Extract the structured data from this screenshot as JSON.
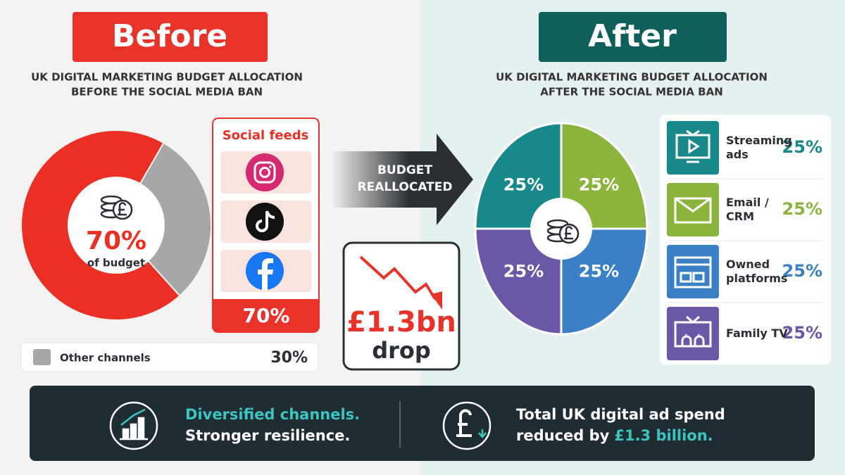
{
  "chart_data": [
    {
      "type": "donut",
      "badge": "Before",
      "title": [
        "UK DIGITAL MARKETING BUDGET ALLOCATION",
        "BEFORE THE SOCIAL MEDIA BAN"
      ],
      "categories": [
        "Social feeds",
        "Other channels"
      ],
      "values": [
        70,
        30
      ],
      "value_labels": [
        "70%",
        "30%"
      ],
      "colors": [
        "#ec2f24",
        "#a7a7a7"
      ],
      "center_caption": "of budget"
    },
    {
      "type": "pie",
      "badge": "After",
      "title": [
        "UK DIGITAL MARKETING BUDGET ALLOCATION",
        "AFTER THE SOCIAL MEDIA BAN"
      ],
      "categories": [
        "Streaming ads",
        "Email / CRM",
        "Owned platforms",
        "Family TV"
      ],
      "values": [
        25,
        25,
        25,
        25
      ],
      "value_labels": [
        "25%",
        "25%",
        "25%",
        "25%"
      ],
      "colors": [
        "#17898a",
        "#8bb43c",
        "#3a80c6",
        "#6b57a8"
      ]
    }
  ],
  "arrow_label": [
    "BUDGET",
    "REALLOCATED"
  ],
  "drop_callout": {
    "amount": "£1.3bn",
    "label": "drop"
  },
  "footer": {
    "left": [
      "Diversified channels.",
      "Stronger resilience."
    ],
    "right": [
      "Total UK digital ad spend",
      "reduced by",
      "£1.3 billion."
    ]
  }
}
